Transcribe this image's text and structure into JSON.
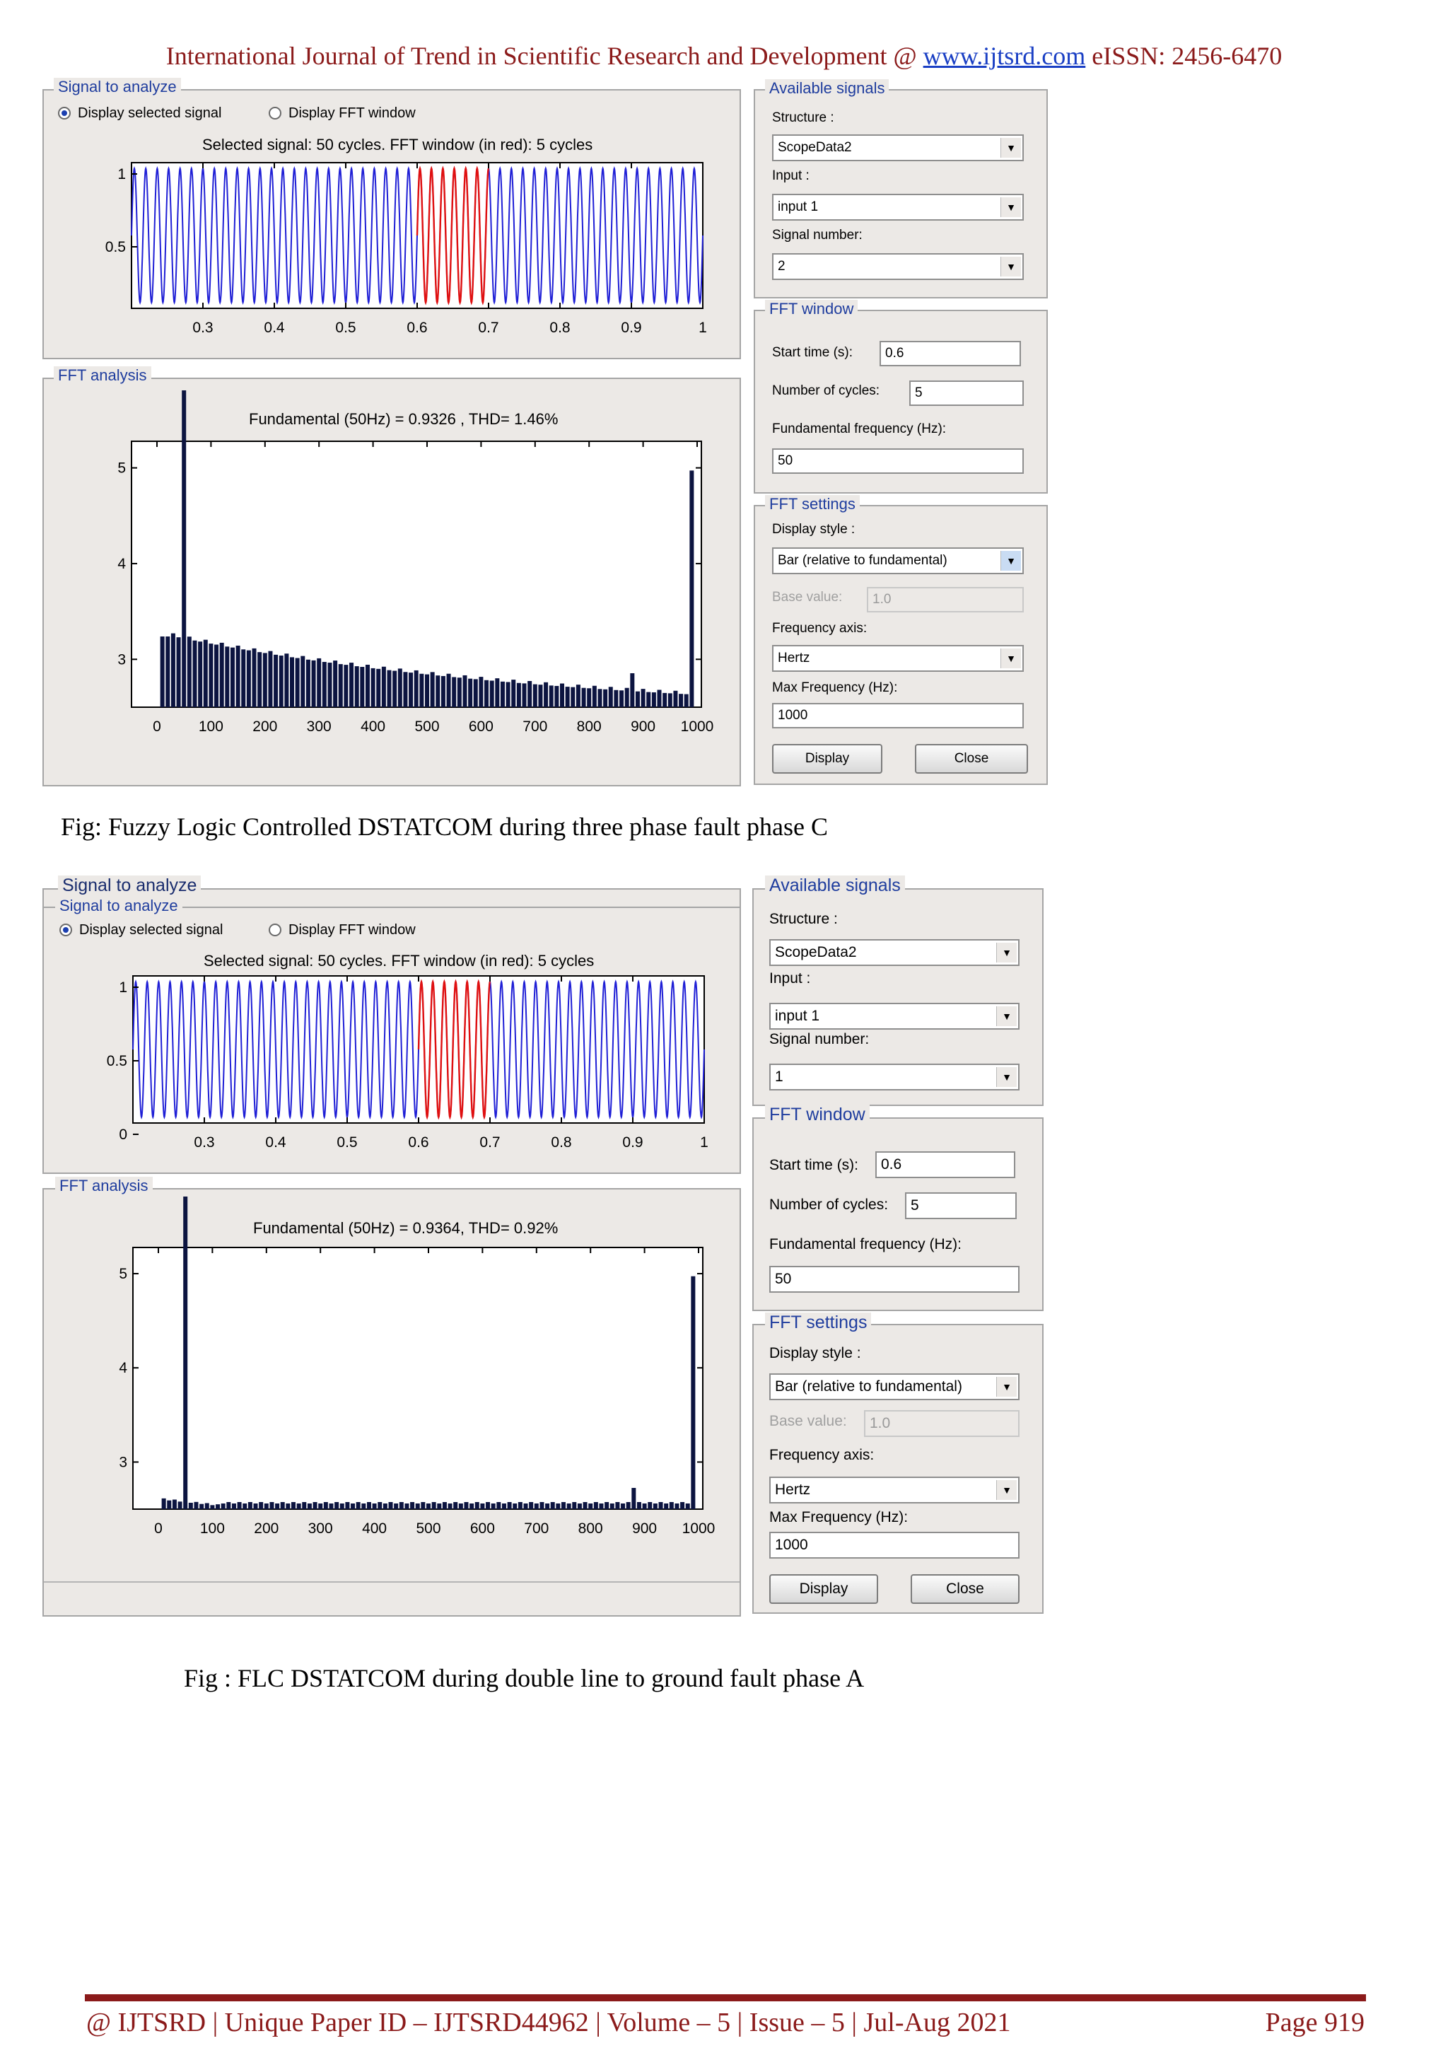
{
  "header": {
    "journal": "International Journal of Trend in Scientific Research and Development @",
    "url": "www.ijtsrd.com",
    "issn": "eISSN: 2456-6470"
  },
  "figures": [
    {
      "signal_panel": {
        "title": "Signal to analyze",
        "radio_selected": "Display selected signal",
        "radio_fft": "Display FFT window",
        "plot_title": "Selected signal: 50 cycles. FFT window (in red): 5 cycles"
      },
      "fft_panel": {
        "title": "FFT analysis",
        "plot_title": "Fundamental (50Hz) = 0.9326 , THD= 1.46%"
      },
      "available_signals": {
        "title": "Available signals",
        "structure_label": "Structure :",
        "structure_value": "ScopeData2",
        "input_label": "Input :",
        "input_value": "input 1",
        "signal_number_label": "Signal number:",
        "signal_number_value": "2"
      },
      "fft_window": {
        "title": "FFT window",
        "start_time_label": "Start time (s):",
        "start_time_value": "0.6",
        "cycles_label": "Number of cycles:",
        "cycles_value": "5",
        "fund_freq_label": "Fundamental frequency (Hz):",
        "fund_freq_value": "50"
      },
      "fft_settings": {
        "title": "FFT settings",
        "display_style_label": "Display style :",
        "display_style_value": "Bar (relative to fundamental)",
        "base_value_label": "Base value:",
        "base_value_value": "1.0",
        "freq_axis_label": "Frequency axis:",
        "freq_axis_value": "Hertz",
        "max_freq_label": "Max Frequency (Hz):",
        "max_freq_value": "1000",
        "display_button": "Display",
        "close_button": "Close"
      },
      "caption": "Fig: Fuzzy Logic Controlled DSTATCOM during three phase fault phase C"
    },
    {
      "signal_panel": {
        "outer_title": "Signal to analyze",
        "title": "Signal to analyze",
        "radio_selected": "Display selected signal",
        "radio_fft": "Display FFT window",
        "plot_title": "Selected signal: 50 cycles. FFT window (in red): 5 cycles"
      },
      "fft_panel": {
        "title": "FFT analysis",
        "plot_title": "Fundamental (50Hz) = 0.9364, THD= 0.92%"
      },
      "available_signals": {
        "title": "Available signals",
        "structure_label": "Structure :",
        "structure_value": "ScopeData2",
        "input_label": "Input :",
        "input_value": "input 1",
        "signal_number_label": "Signal number:",
        "signal_number_value": "1"
      },
      "fft_window": {
        "title": "FFT window",
        "start_time_label": "Start time (s):",
        "start_time_value": "0.6",
        "cycles_label": "Number of cycles:",
        "cycles_value": "5",
        "fund_freq_label": "Fundamental frequency (Hz):",
        "fund_freq_value": "50"
      },
      "fft_settings": {
        "title": "FFT settings",
        "display_style_label": "Display style :",
        "display_style_value": "Bar (relative to fundamental)",
        "base_value_label": "Base value:",
        "base_value_value": "1.0",
        "freq_axis_label": "Frequency axis:",
        "freq_axis_value": "Hertz",
        "max_freq_label": "Max Frequency (Hz):",
        "max_freq_value": "1000",
        "display_button": "Display",
        "close_button": "Close"
      },
      "caption": "Fig : FLC DSTATCOM during double line to ground fault phase A"
    }
  ],
  "chart_data": [
    {
      "type": "line",
      "title": "Selected signal: 50 cycles. FFT window (in red): 5 cycles",
      "xlim": [
        0.2,
        1.0
      ],
      "x_ticks": [
        "0.3",
        "0.4",
        "0.5",
        "0.6",
        "0.7",
        "0.8",
        "0.9",
        "1"
      ],
      "y_ticks": [
        "1",
        "0.5"
      ],
      "cycles": 50,
      "fft_window": [
        0.6,
        0.7
      ],
      "colors": {
        "signal": "#1f1fd6",
        "window": "#e01010"
      }
    },
    {
      "type": "bar",
      "title": "Fundamental (50Hz) = 0.9326 , THD= 1.46%",
      "xlim": [
        0,
        1000
      ],
      "x_ticks": [
        "0",
        "100",
        "200",
        "300",
        "400",
        "500",
        "600",
        "700",
        "800",
        "900",
        "1000"
      ],
      "y_ticks": [
        "5",
        "4",
        "3"
      ],
      "fundamental": {
        "freq": 50,
        "value": 0.9326
      },
      "thd_percent": 1.46,
      "harmonic_profile": "decaying",
      "edge_bar": {
        "freq": 990
      },
      "colors": {
        "bars": "#0c1440"
      }
    },
    {
      "type": "line",
      "title": "Selected signal: 50 cycles. FFT window (in red): 5 cycles",
      "xlim": [
        0.2,
        1.0
      ],
      "x_ticks": [
        "0.3",
        "0.4",
        "0.5",
        "0.6",
        "0.7",
        "0.8",
        "0.9",
        "1"
      ],
      "y_ticks": [
        "1",
        "0.5",
        "0"
      ],
      "cycles": 50,
      "fft_window": [
        0.6,
        0.7
      ],
      "colors": {
        "signal": "#1f1fd6",
        "window": "#e01010"
      }
    },
    {
      "type": "bar",
      "title": "Fundamental (50Hz) = 0.9364, THD= 0.92%",
      "xlim": [
        0,
        1000
      ],
      "x_ticks": [
        "0",
        "100",
        "200",
        "300",
        "400",
        "500",
        "600",
        "700",
        "800",
        "900",
        "1000"
      ],
      "y_ticks": [
        "5",
        "4",
        "3"
      ],
      "fundamental": {
        "freq": 50,
        "value": 0.9364
      },
      "thd_percent": 0.92,
      "harmonic_profile": "flat",
      "edge_bar": {
        "freq": 990
      },
      "colors": {
        "bars": "#0c1440"
      }
    }
  ],
  "footer": {
    "left": "@ IJTSRD | Unique Paper ID – IJTSRD44962 | Volume – 5 | Issue – 5 | Jul-Aug 2021",
    "right": "Page 919"
  }
}
